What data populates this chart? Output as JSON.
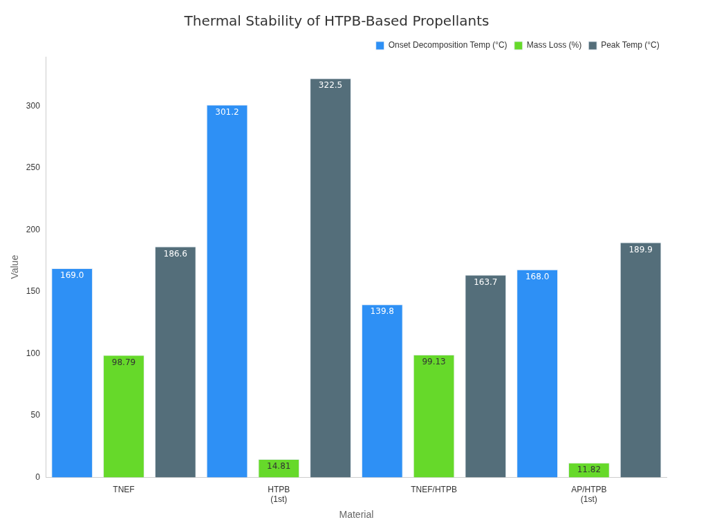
{
  "chart_data": {
    "type": "bar",
    "title": "Thermal Stability of HTPB-Based Propellants",
    "xlabel": "Material",
    "ylabel": "Value",
    "categories": [
      "TNEF",
      "HTPB (1st)",
      "TNEF/HTPB",
      "AP/HTPB (1st)"
    ],
    "series": [
      {
        "name": "Onset Decomposition Temp (°C)",
        "color": "#2e90f5",
        "values": [
          169.0,
          301.2,
          139.8,
          168.0
        ],
        "value_labels": [
          "169.0",
          "301.2",
          "139.8",
          "168.0"
        ]
      },
      {
        "name": "Mass Loss (%)",
        "color": "#66d92a",
        "values": [
          98.79,
          14.81,
          99.13,
          11.82
        ],
        "value_labels": [
          "98.79",
          "14.81",
          "99.13",
          "11.82"
        ]
      },
      {
        "name": "Peak Temp (°C)",
        "color": "#546e7a",
        "values": [
          186.6,
          322.5,
          163.7,
          189.9
        ],
        "value_labels": [
          "186.6",
          "322.5",
          "163.7",
          "189.9"
        ]
      }
    ],
    "ylim": [
      0,
      340
    ],
    "yticks": [
      0,
      50,
      100,
      150,
      200,
      250,
      300
    ],
    "grid": false,
    "legend": "top right"
  }
}
